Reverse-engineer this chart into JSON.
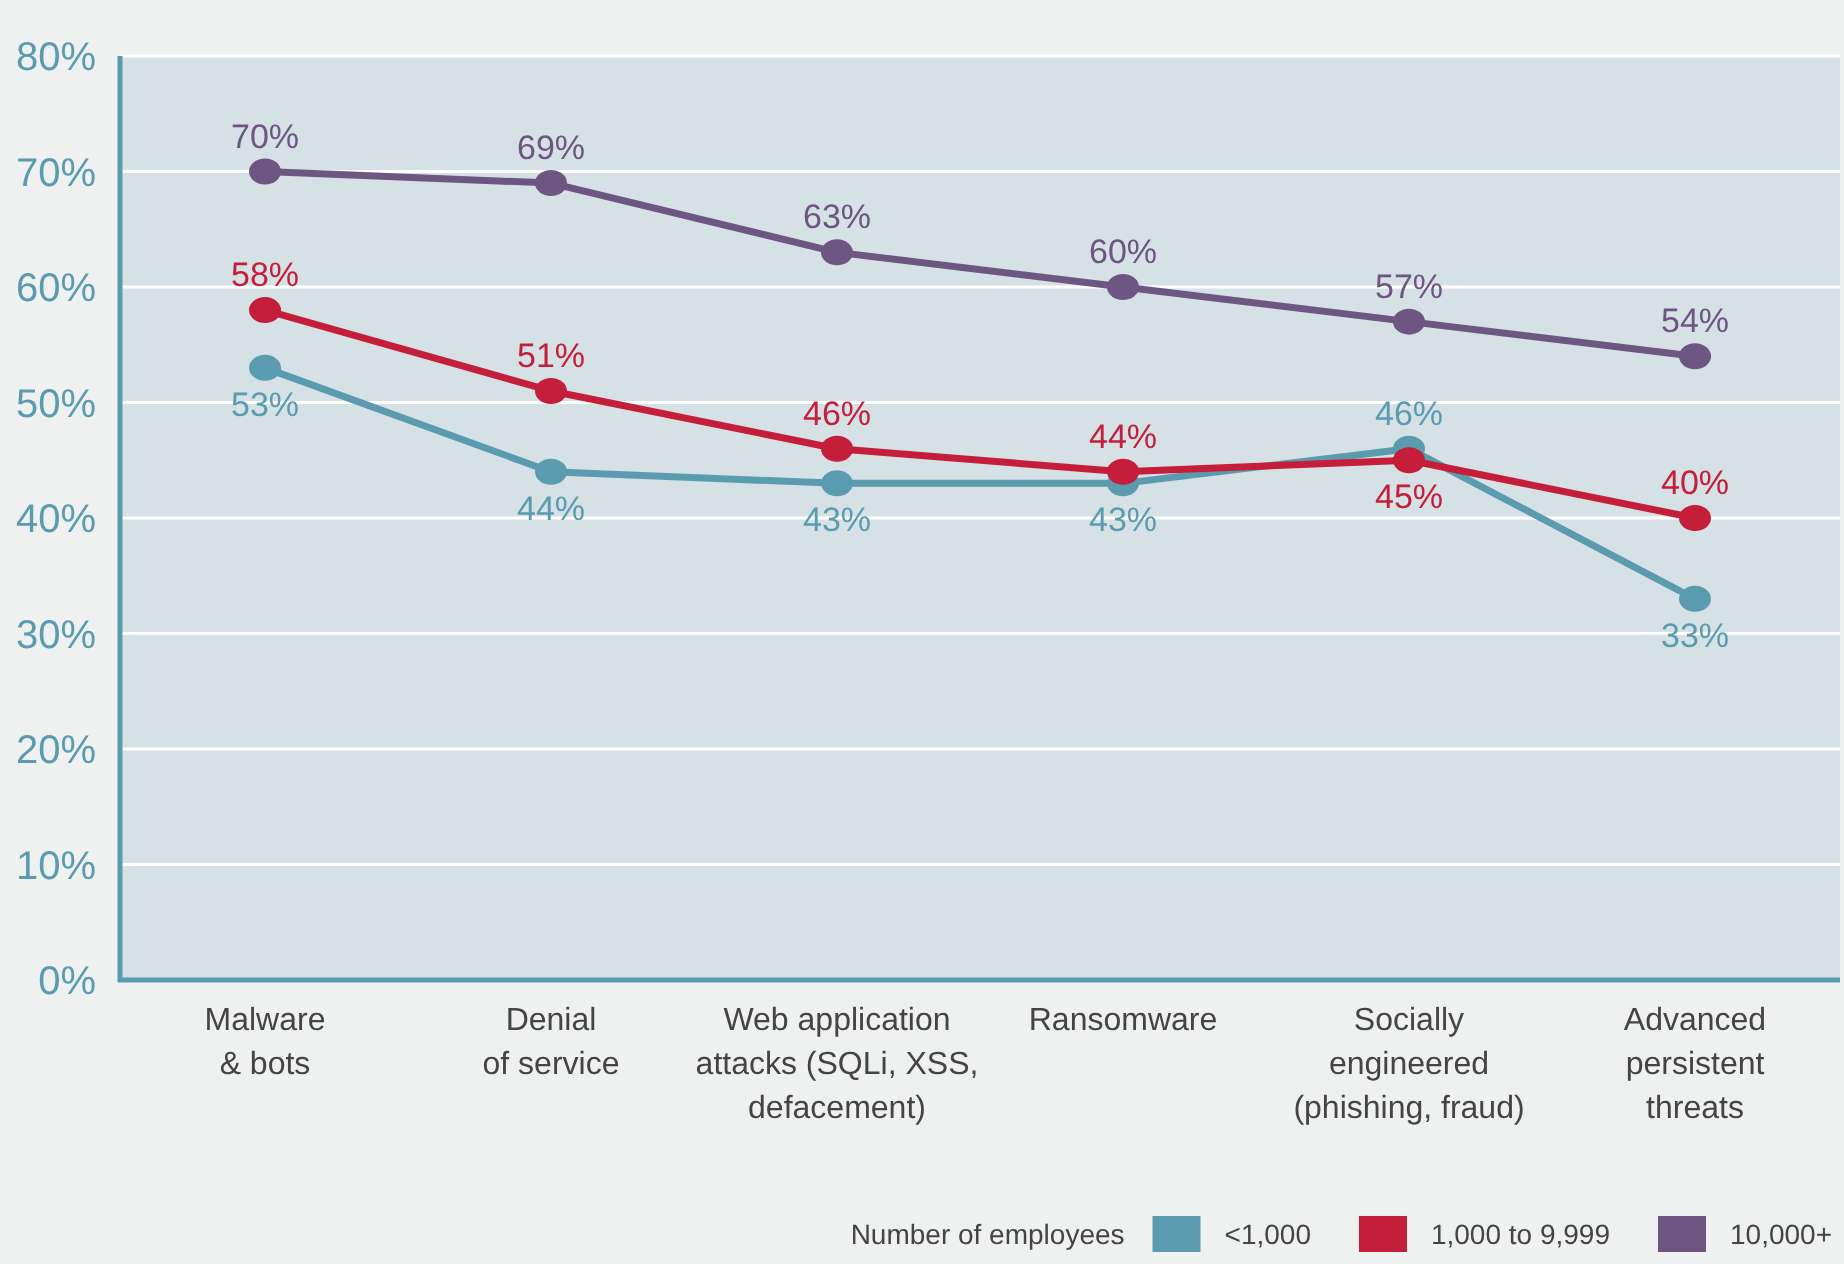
{
  "chart_data": {
    "type": "line",
    "categories": [
      "Malware\n& bots",
      "Denial\nof service",
      "Web application\nattacks (SQLi, XSS,\ndefacement)",
      "Ransomware",
      "Socially\nengineered\n(phishing, fraud)",
      "Advanced\npersistent\nthreats"
    ],
    "series": [
      {
        "name": "<1,000",
        "color": "#5b9bb0",
        "values": [
          53,
          44,
          43,
          43,
          46,
          33
        ],
        "value_labels": [
          "53%",
          "44%",
          "43%",
          "43%",
          "46%",
          "33%"
        ]
      },
      {
        "name": "1,000 to 9,999",
        "color": "#c41e3a",
        "values": [
          58,
          51,
          46,
          44,
          45,
          40
        ],
        "value_labels": [
          "58%",
          "51%",
          "46%",
          "44%",
          "45%",
          "40%"
        ]
      },
      {
        "name": "10,000+",
        "color": "#6e5683",
        "values": [
          70,
          69,
          63,
          60,
          57,
          54
        ],
        "value_labels": [
          "70%",
          "69%",
          "63%",
          "60%",
          "57%",
          "54%"
        ]
      }
    ],
    "ylim": [
      0,
      80
    ],
    "yticks": [
      {
        "value": 0,
        "label": "0%"
      },
      {
        "value": 10,
        "label": "10%"
      },
      {
        "value": 20,
        "label": "20%"
      },
      {
        "value": 30,
        "label": "30%"
      },
      {
        "value": 40,
        "label": "40%"
      },
      {
        "value": 50,
        "label": "50%"
      },
      {
        "value": 60,
        "label": "60%"
      },
      {
        "value": 70,
        "label": "70%"
      },
      {
        "value": 80,
        "label": "80%"
      }
    ],
    "grid": "y",
    "legend": "bottom right",
    "legend_title": "Number of employees",
    "marker": "circle",
    "line_style": "solid"
  }
}
